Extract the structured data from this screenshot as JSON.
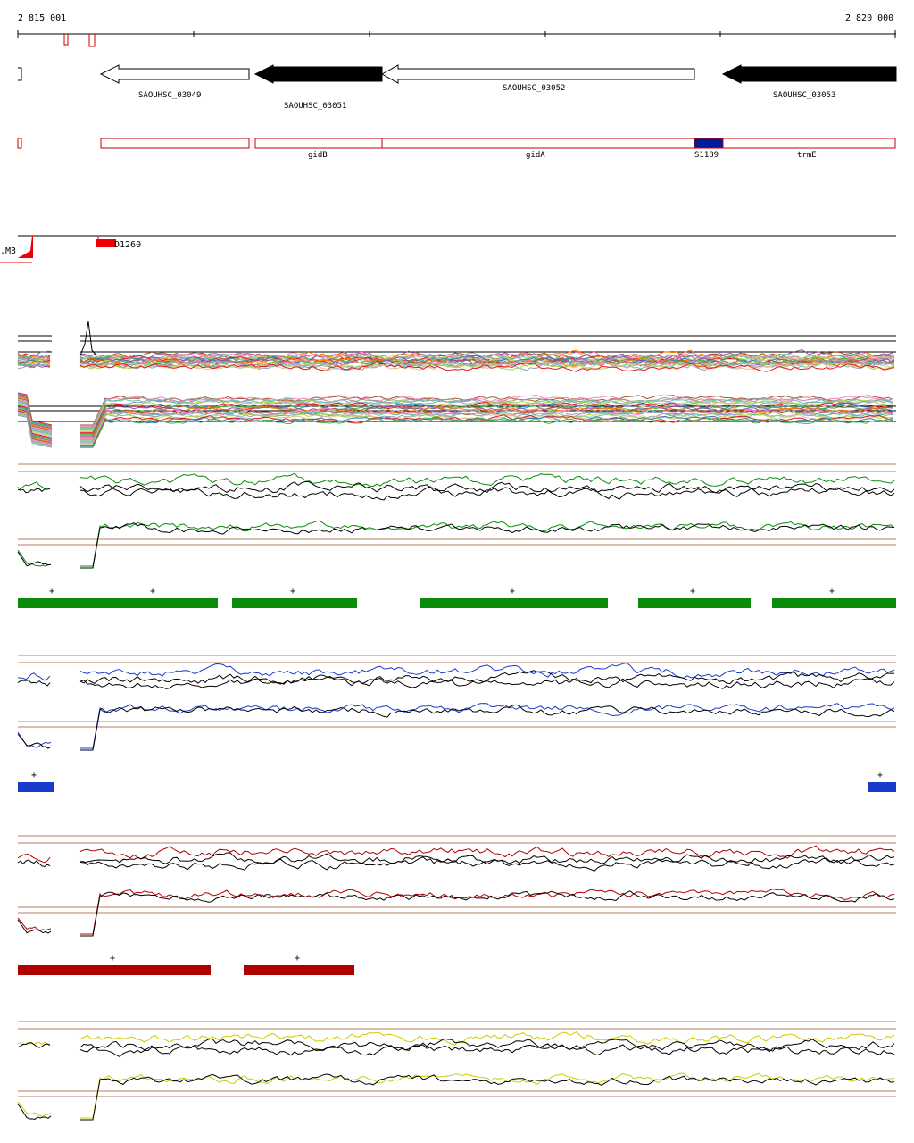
{
  "ruler": {
    "start_label": "2 815 001",
    "end_label": "2 820 000"
  },
  "genes": {
    "locus_tags": [
      "SAOUHSC_03049",
      "SAOUHSC_03051",
      "SAOUHSC_03052",
      "SAOUHSC_03053"
    ],
    "names": [
      "gidB",
      "gidA",
      "S1189",
      "trmE"
    ]
  },
  "features": {
    "d_label": "D1260",
    "m_label": ".M3"
  },
  "segments": {
    "plus_symbol": "+"
  },
  "colors": {
    "axis": "#000000",
    "gene_outline": "#cc0000",
    "feature_red": "#ee0000",
    "dark_blue": "#001a99",
    "green": "#0a8c0a",
    "blue": "#1a3acc",
    "dark_red": "#b00000",
    "yellow": "#cccc00",
    "ref_brown": "#a0522d"
  }
}
